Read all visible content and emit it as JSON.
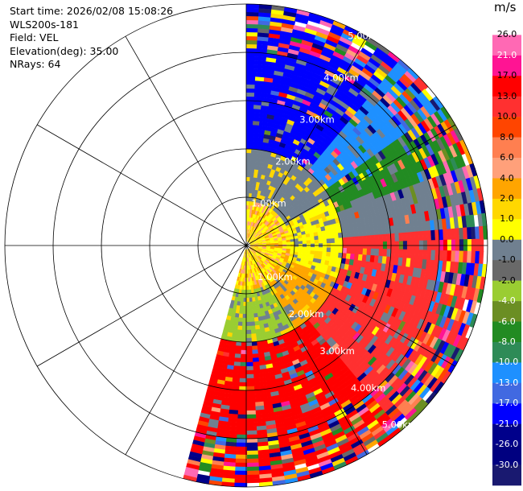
{
  "header": {
    "start_time": "Start time: 2026/02/08 15:08:26",
    "instrument": "WLS200s-181",
    "field": "Field: VEL",
    "elevation": "Elevation(deg): 35.00",
    "nrays": "NRays: 64"
  },
  "chart_data": {
    "type": "heatmap",
    "title": "",
    "plot": "PPI (polar)",
    "field": "VEL",
    "unit": "m/s",
    "elevation_deg": 35.0,
    "n_rays": 64,
    "sector_deg": [
      0,
      195
    ],
    "range_rings_km": [
      1,
      2,
      3,
      4,
      5
    ],
    "ring_labels": [
      "1.00km",
      "2.00km",
      "3.00km",
      "4.00km",
      "5.00km"
    ],
    "grid": true,
    "colorbar": {
      "label": "m/s",
      "range": [
        -30,
        30
      ],
      "ticks": [
        "26.0",
        "21.0",
        "17.0",
        "13.0",
        "10.0",
        "8.0",
        "6.0",
        "4.0",
        "2.0",
        "1.0",
        "0.0",
        "-1.0",
        "-2.0",
        "-4.0",
        "-6.0",
        "-8.0",
        "-10.0",
        "-13.0",
        "-17.0",
        "-21.0",
        "-26.0",
        "-30.0"
      ],
      "colors": [
        "#ffffff",
        "#ff69b4",
        "#ff1493",
        "#ff0000",
        "#ff3030",
        "#ff4500",
        "#ff7f50",
        "#ffa07a",
        "#ffa500",
        "#ffd700",
        "#ffff00",
        "#708090",
        "#696969",
        "#9acd32",
        "#6b8e23",
        "#228b22",
        "#2e8b57",
        "#1e90ff",
        "#4169e1",
        "#0000ff",
        "#00008b",
        "#000080",
        "#191970"
      ]
    }
  }
}
